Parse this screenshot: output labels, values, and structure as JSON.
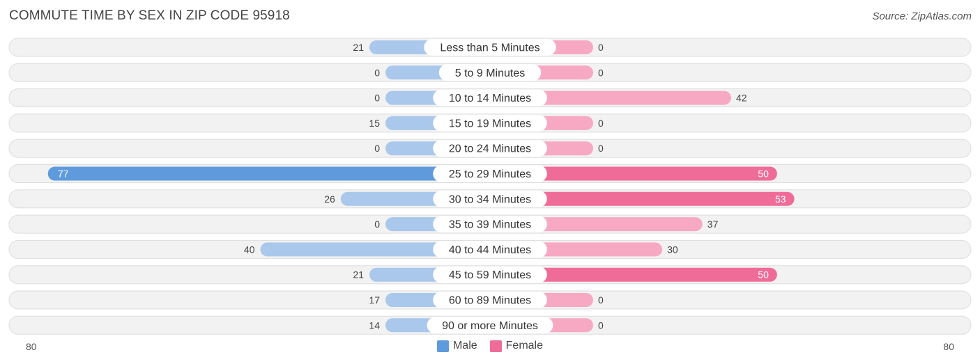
{
  "title": "COMMUTE TIME BY SEX IN ZIP CODE 95918",
  "source": "Source: ZipAtlas.com",
  "colors": {
    "male_dark": "#5f9bdc",
    "male_light": "#a9c8ec",
    "female_dark": "#f06c98",
    "female_light": "#f7a9c3",
    "row_bg": "#f2f2f2",
    "row_border": "#dddddd"
  },
  "legend": {
    "male": "Male",
    "female": "Female"
  },
  "axis": {
    "left_label": "80",
    "right_label": "80"
  },
  "chart_data": {
    "type": "bar",
    "orientation": "horizontal-diverging",
    "categories": [
      "Less than 5 Minutes",
      "5 to 9 Minutes",
      "10 to 14 Minutes",
      "15 to 19 Minutes",
      "20 to 24 Minutes",
      "25 to 29 Minutes",
      "30 to 34 Minutes",
      "35 to 39 Minutes",
      "40 to 44 Minutes",
      "45 to 59 Minutes",
      "60 to 89 Minutes",
      "90 or more Minutes"
    ],
    "series": [
      {
        "name": "Male",
        "values": [
          21,
          0,
          0,
          15,
          0,
          77,
          26,
          0,
          40,
          21,
          17,
          14
        ]
      },
      {
        "name": "Female",
        "values": [
          0,
          0,
          42,
          0,
          0,
          50,
          53,
          37,
          30,
          50,
          0,
          0
        ]
      }
    ],
    "xlim": [
      -80,
      80
    ],
    "legend_position": "bottom-center"
  }
}
